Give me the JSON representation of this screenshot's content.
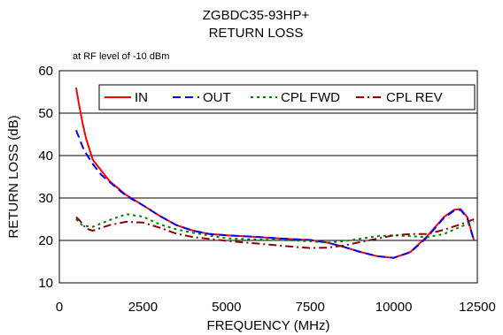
{
  "chart_data": {
    "type": "line",
    "title": "ZGBDC35-93HP+",
    "subtitle": "RETURN LOSS",
    "annotation": "at RF level of -10 dBm",
    "xlabel": "FREQUENCY (MHz)",
    "ylabel": "RETURN LOSS (dB)",
    "xlim": [
      0,
      12500
    ],
    "ylim": [
      10,
      60
    ],
    "xticks": [
      "0",
      "2500",
      "5000",
      "7500",
      "10000",
      "12500"
    ],
    "yticks": [
      "10",
      "20",
      "30",
      "40",
      "50",
      "60"
    ],
    "grid": "horizontal",
    "legend_position": "top",
    "series": [
      {
        "name": "IN",
        "color": "#ff0000",
        "dash": "solid",
        "x": [
          500,
          600,
          700,
          800,
          1000,
          1250,
          1500,
          2000,
          2500,
          3000,
          3500,
          4000,
          4500,
          5000,
          5500,
          6000,
          6500,
          7000,
          7500,
          8000,
          8500,
          9000,
          9500,
          10000,
          10500,
          11000,
          11500,
          11800,
          12000,
          12200,
          12400
        ],
        "y": [
          56,
          51.5,
          47.5,
          44,
          39,
          36.5,
          34,
          30.7,
          28.3,
          25.8,
          23.6,
          22.3,
          21.5,
          21.2,
          21.0,
          20.8,
          20.5,
          20.3,
          20.1,
          19.5,
          18.5,
          17.3,
          16.3,
          15.9,
          17.3,
          21.0,
          25.5,
          27.2,
          27.4,
          25.5,
          20.0
        ]
      },
      {
        "name": "OUT",
        "color": "#0000ff",
        "dash": "long-dash",
        "x": [
          500,
          600,
          700,
          800,
          1000,
          1250,
          1500,
          2000,
          2500,
          3000,
          3500,
          4000,
          4500,
          5000,
          5500,
          6000,
          6500,
          7000,
          7500,
          8000,
          8500,
          9000,
          9500,
          10000,
          10500,
          11000,
          11500,
          11800,
          12000,
          12200,
          12400
        ],
        "y": [
          46,
          44,
          42,
          40.5,
          38,
          35.5,
          33.8,
          30.5,
          28.3,
          25.8,
          23.6,
          22.3,
          21.5,
          21.2,
          21.0,
          20.8,
          20.5,
          20.3,
          20.1,
          19.5,
          18.5,
          17.3,
          16.3,
          15.9,
          17.2,
          20.8,
          25.3,
          27.0,
          27.2,
          25.2,
          20.0
        ]
      },
      {
        "name": "CPL FWD",
        "color": "#008000",
        "dash": "dotted",
        "x": [
          500,
          700,
          1000,
          1500,
          2000,
          2500,
          3000,
          3500,
          4000,
          5000,
          6000,
          7000,
          7500,
          8000,
          8500,
          9000,
          9500,
          10000,
          10500,
          11000,
          11500,
          12000,
          12400
        ],
        "y": [
          25,
          23.5,
          23.2,
          24.8,
          26.2,
          25.6,
          23.8,
          22.6,
          21.8,
          20.5,
          20.2,
          20.0,
          19.8,
          19.5,
          19.8,
          20.4,
          21.0,
          21.2,
          21.0,
          20.8,
          21.5,
          23.2,
          24.5
        ]
      },
      {
        "name": "CPL REV",
        "color": "#8b0000",
        "dash": "dash-dot",
        "x": [
          500,
          600,
          800,
          1000,
          1500,
          2000,
          2500,
          3000,
          3500,
          4000,
          5000,
          6000,
          7000,
          7500,
          8000,
          8500,
          9000,
          9500,
          10000,
          10500,
          11000,
          11500,
          12000,
          12400
        ],
        "y": [
          25.5,
          24.8,
          22.8,
          22.3,
          23.6,
          24.4,
          24.2,
          23.0,
          21.6,
          20.8,
          19.9,
          19.2,
          18.5,
          18.2,
          18.3,
          18.8,
          19.6,
          20.4,
          21.2,
          21.5,
          21.5,
          22.5,
          23.8,
          25.0
        ]
      }
    ]
  }
}
